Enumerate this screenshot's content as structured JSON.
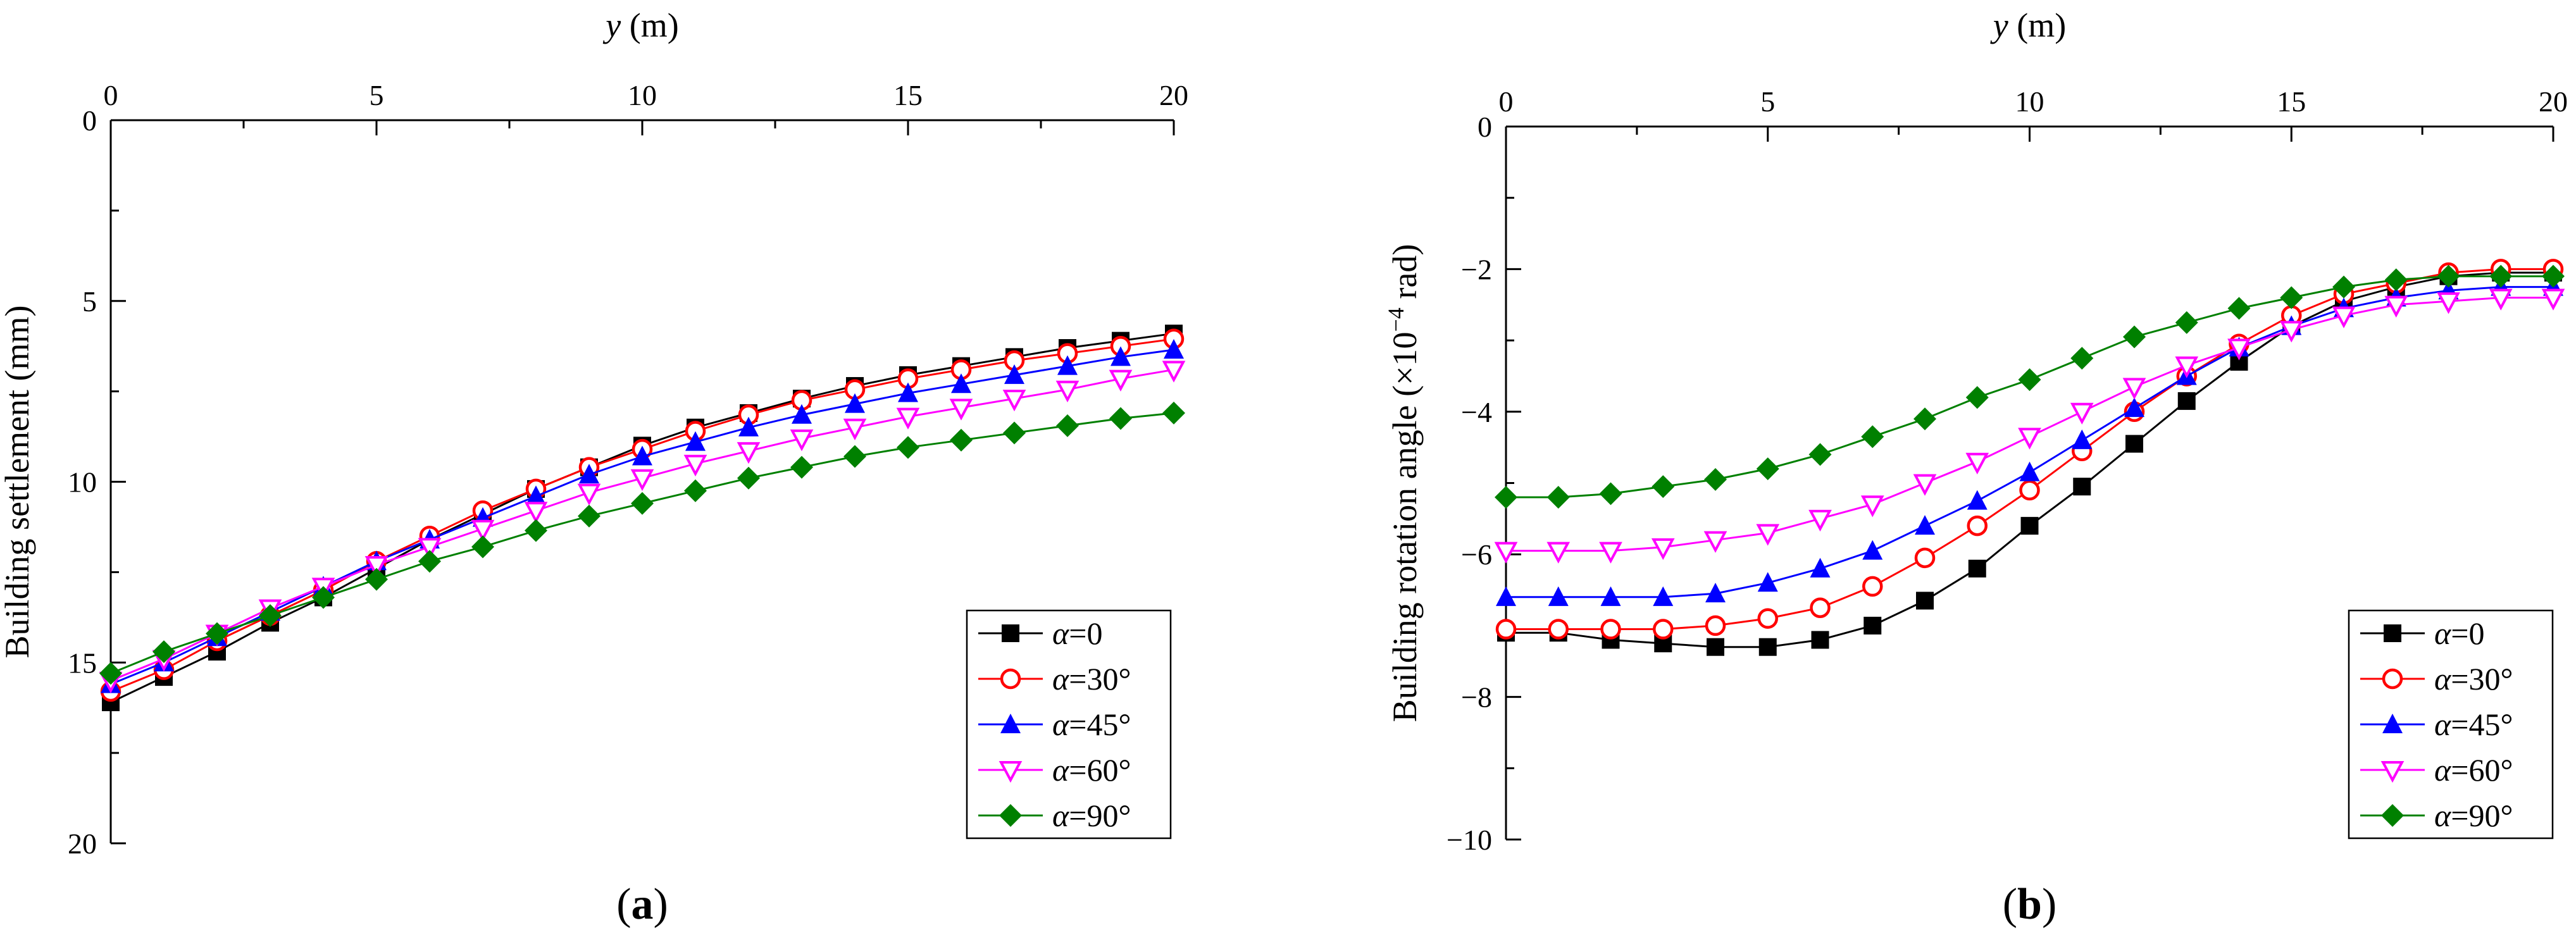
{
  "chart_data": [
    {
      "type": "line",
      "panel_label": "a",
      "xlabel_var": "y",
      "xlabel_unit": " (m)",
      "ylabel": "Building settlement (mm)",
      "xlim": [
        0,
        20
      ],
      "ylim": [
        0,
        20
      ],
      "y_inverted": true,
      "x_axis_position": "top",
      "xticks": [
        0,
        5,
        10,
        15,
        20
      ],
      "yticks": [
        0,
        5,
        10,
        15,
        20
      ],
      "grid": false,
      "legend_position": "bottom-right",
      "x": [
        0,
        1,
        2,
        3,
        4,
        5,
        6,
        7,
        8,
        9,
        10,
        11,
        12,
        13,
        14,
        15,
        16,
        17,
        18,
        19,
        20
      ],
      "series": [
        {
          "name": "α=0",
          "label_parts": [
            "α",
            "=0"
          ],
          "color": "#000000",
          "marker": "square",
          "values": [
            16.1,
            15.4,
            14.7,
            13.9,
            13.2,
            12.4,
            11.6,
            10.9,
            10.2,
            9.6,
            9.0,
            8.5,
            8.1,
            7.7,
            7.35,
            7.05,
            6.8,
            6.55,
            6.3,
            6.1,
            5.9
          ]
        },
        {
          "name": "α=30°",
          "label_parts": [
            "α",
            "=30°"
          ],
          "color": "#ff0000",
          "marker": "circle-open",
          "values": [
            15.8,
            15.2,
            14.4,
            13.7,
            13.0,
            12.2,
            11.5,
            10.8,
            10.2,
            9.6,
            9.1,
            8.6,
            8.15,
            7.75,
            7.45,
            7.15,
            6.9,
            6.65,
            6.45,
            6.25,
            6.05
          ]
        },
        {
          "name": "α=45°",
          "label_parts": [
            "α",
            "=45°"
          ],
          "color": "#0000ff",
          "marker": "triangle-up",
          "values": [
            15.6,
            15.0,
            14.3,
            13.6,
            12.9,
            12.2,
            11.6,
            11.0,
            10.4,
            9.8,
            9.3,
            8.9,
            8.5,
            8.15,
            7.85,
            7.55,
            7.3,
            7.05,
            6.8,
            6.55,
            6.35
          ]
        },
        {
          "name": "α=60°",
          "label_parts": [
            "α",
            "=60°"
          ],
          "color": "#ff00ff",
          "marker": "triangle-down-open",
          "values": [
            15.5,
            14.9,
            14.2,
            13.5,
            12.9,
            12.3,
            11.8,
            11.3,
            10.8,
            10.3,
            9.9,
            9.5,
            9.15,
            8.8,
            8.5,
            8.2,
            7.95,
            7.7,
            7.45,
            7.15,
            6.9
          ]
        },
        {
          "name": "α=90°",
          "label_parts": [
            "α",
            "=90°"
          ],
          "color": "#008000",
          "marker": "diamond",
          "values": [
            15.3,
            14.7,
            14.2,
            13.7,
            13.2,
            12.7,
            12.2,
            11.8,
            11.35,
            10.95,
            10.6,
            10.25,
            9.9,
            9.6,
            9.3,
            9.05,
            8.85,
            8.65,
            8.45,
            8.25,
            8.1
          ]
        }
      ]
    },
    {
      "type": "line",
      "panel_label": "b",
      "xlabel_var": "y",
      "xlabel_unit": " (m)",
      "ylabel_main": "Building rotation angle (×10",
      "ylabel_sup": "−4",
      "ylabel_tail": " rad)",
      "xlim": [
        0,
        20
      ],
      "ylim": [
        -10,
        0
      ],
      "x_axis_position": "top",
      "xticks": [
        0,
        5,
        10,
        15,
        20
      ],
      "yticks": [
        0,
        -2,
        -4,
        -6,
        -8,
        -10
      ],
      "ytick_labels": [
        "0",
        "−2",
        "−4",
        "−6",
        "−8",
        "−10"
      ],
      "grid": false,
      "legend_position": "bottom-right",
      "x": [
        0,
        1,
        2,
        3,
        4,
        5,
        6,
        7,
        8,
        9,
        10,
        11,
        12,
        13,
        14,
        15,
        16,
        17,
        18,
        19,
        20
      ],
      "series": [
        {
          "name": "α=0",
          "label_parts": [
            "α",
            "=0"
          ],
          "color": "#000000",
          "marker": "square",
          "values": [
            -7.1,
            -7.1,
            -7.2,
            -7.25,
            -7.3,
            -7.3,
            -7.2,
            -7.0,
            -6.65,
            -6.2,
            -5.6,
            -5.05,
            -4.45,
            -3.85,
            -3.3,
            -2.8,
            -2.45,
            -2.25,
            -2.1,
            -2.05,
            -2.05
          ]
        },
        {
          "name": "α=30°",
          "label_parts": [
            "α",
            "=30°"
          ],
          "color": "#ff0000",
          "marker": "circle-open",
          "values": [
            -7.05,
            -7.05,
            -7.05,
            -7.05,
            -7.0,
            -6.9,
            -6.75,
            -6.45,
            -6.05,
            -5.6,
            -5.1,
            -4.55,
            -4.0,
            -3.5,
            -3.05,
            -2.65,
            -2.35,
            -2.2,
            -2.05,
            -2.0,
            -2.0
          ]
        },
        {
          "name": "α=45°",
          "label_parts": [
            "α",
            "=45°"
          ],
          "color": "#0000ff",
          "marker": "triangle-up",
          "values": [
            -6.6,
            -6.6,
            -6.6,
            -6.6,
            -6.55,
            -6.4,
            -6.2,
            -5.95,
            -5.6,
            -5.25,
            -4.85,
            -4.4,
            -3.95,
            -3.5,
            -3.1,
            -2.8,
            -2.55,
            -2.4,
            -2.3,
            -2.25,
            -2.25
          ]
        },
        {
          "name": "α=60°",
          "label_parts": [
            "α",
            "=60°"
          ],
          "color": "#ff00ff",
          "marker": "triangle-down-open",
          "values": [
            -5.95,
            -5.95,
            -5.95,
            -5.9,
            -5.8,
            -5.7,
            -5.5,
            -5.3,
            -5.0,
            -4.7,
            -4.35,
            -4.0,
            -3.65,
            -3.35,
            -3.1,
            -2.85,
            -2.65,
            -2.5,
            -2.45,
            -2.4,
            -2.4
          ]
        },
        {
          "name": "α=90°",
          "label_parts": [
            "α",
            "=90°"
          ],
          "color": "#008000",
          "marker": "diamond",
          "values": [
            -5.2,
            -5.2,
            -5.15,
            -5.05,
            -4.95,
            -4.8,
            -4.6,
            -4.35,
            -4.1,
            -3.8,
            -3.55,
            -3.25,
            -2.95,
            -2.75,
            -2.55,
            -2.4,
            -2.25,
            -2.15,
            -2.1,
            -2.1,
            -2.1
          ]
        }
      ]
    }
  ]
}
